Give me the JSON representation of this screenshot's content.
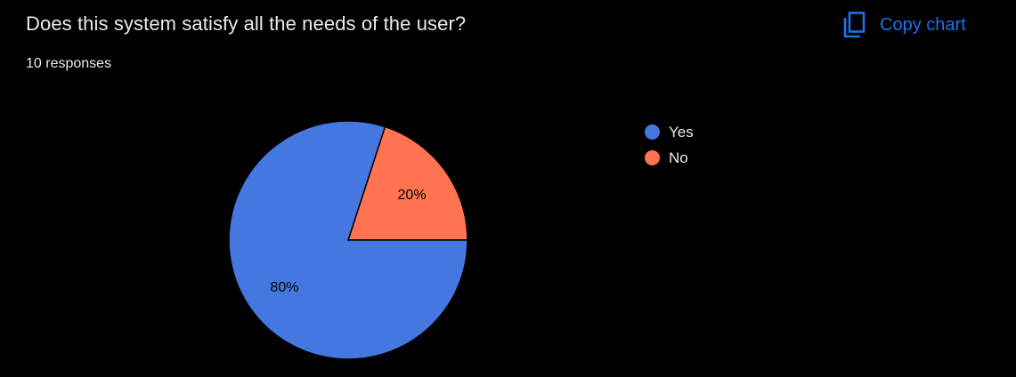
{
  "question": {
    "title": "Does this system satisfy all the needs of the user?",
    "responses": "10 responses"
  },
  "toolbar": {
    "copy_chart_label": "Copy chart",
    "copy_icon": "copy-icon",
    "accent_color": "#1a73e8"
  },
  "chart_data": {
    "type": "pie",
    "categories": [
      "Yes",
      "No"
    ],
    "values": [
      80,
      20
    ],
    "labels": [
      "80%",
      "20%"
    ],
    "colors": [
      "#4478e0",
      "#ff7350"
    ],
    "legend_position": "right"
  },
  "legend": {
    "items": [
      {
        "label": "Yes",
        "color": "#4478e0"
      },
      {
        "label": "No",
        "color": "#ff7350"
      }
    ]
  }
}
